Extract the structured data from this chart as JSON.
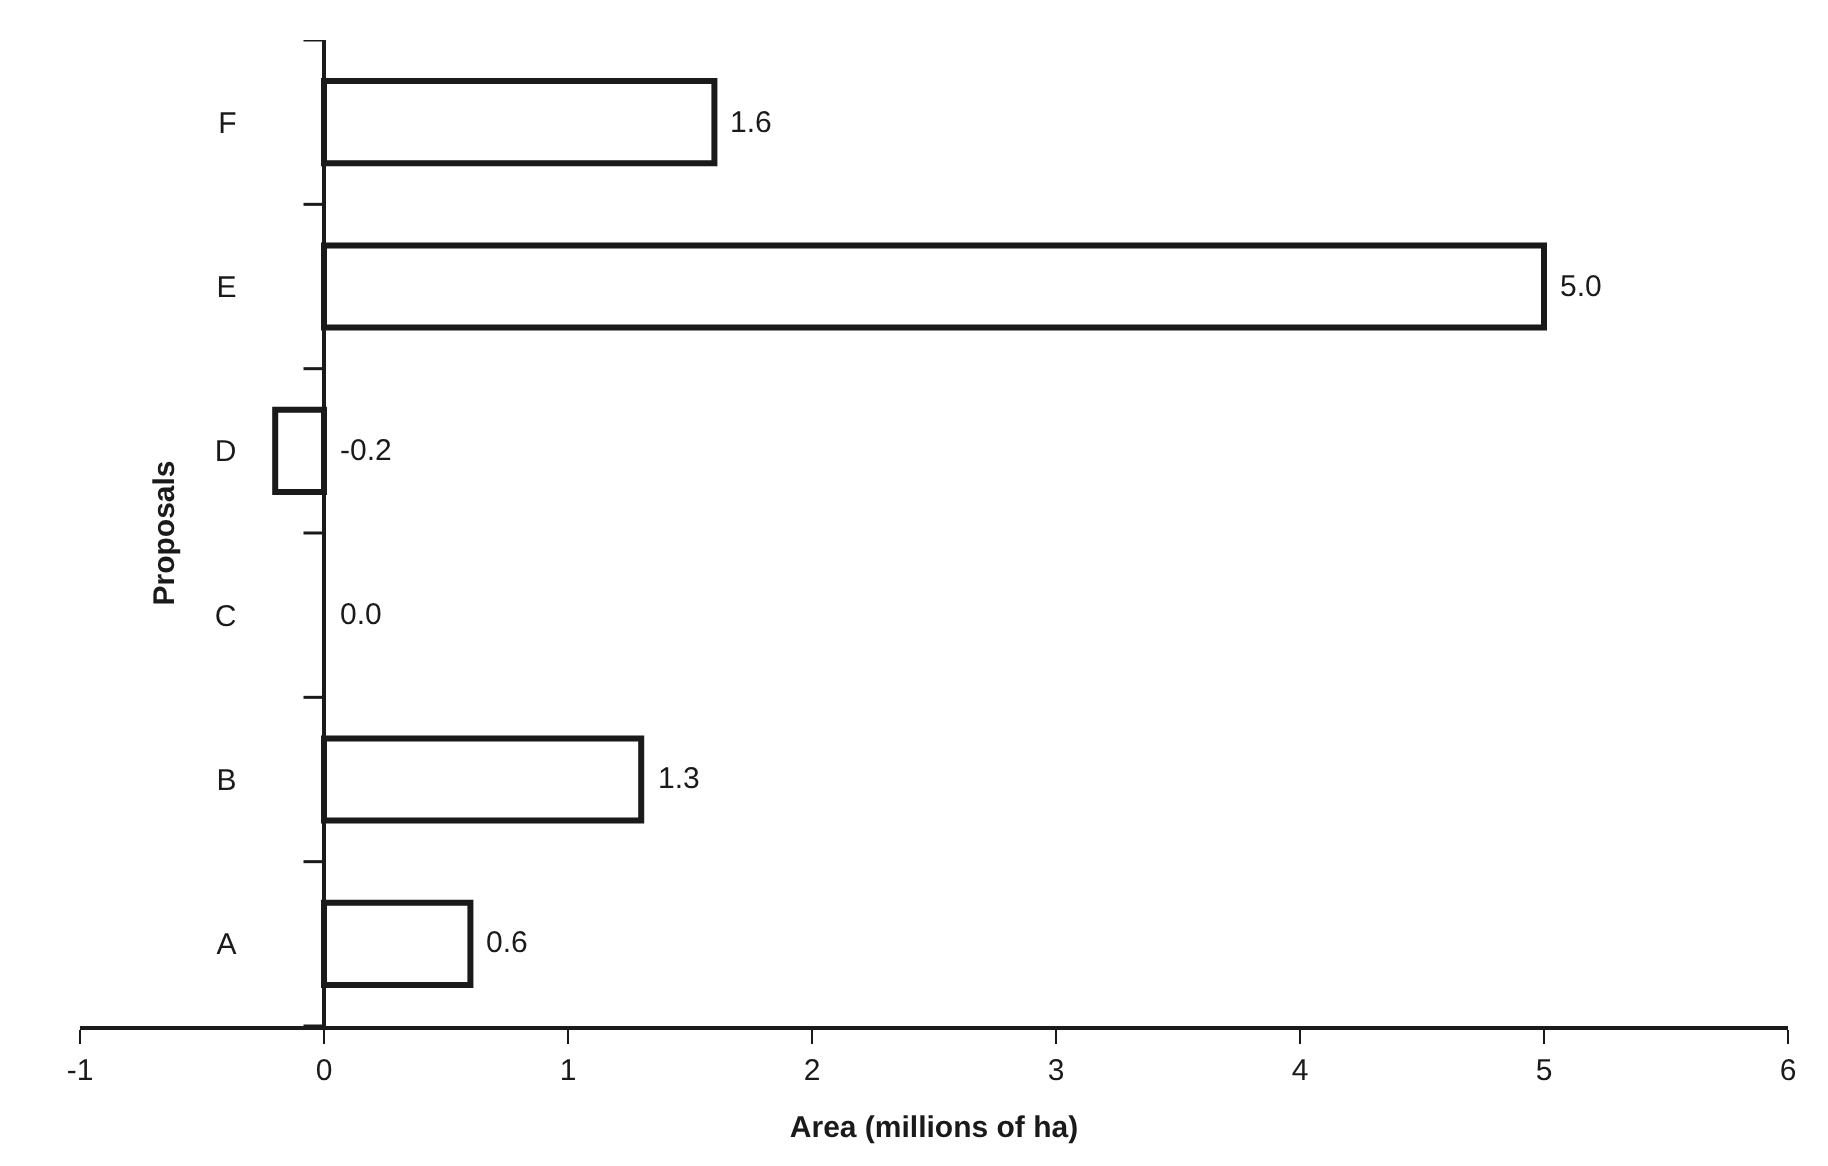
{
  "chart_data": {
    "type": "bar",
    "orientation": "horizontal",
    "xlabel": "Area (millions of ha)",
    "ylabel": "Proposals",
    "categories": [
      "F",
      "E",
      "D",
      "C",
      "B",
      "A"
    ],
    "values": [
      1.6,
      5.0,
      -0.2,
      0.0,
      1.3,
      0.6
    ],
    "value_labels": [
      "1.6",
      "5.0",
      "-0.2",
      "0.0",
      "1.3",
      "0.6"
    ],
    "color": "#ffffff",
    "xlim": [
      -1,
      6
    ],
    "xticks": [
      -1,
      0,
      1,
      2,
      3,
      4,
      5,
      6
    ],
    "legend": false
  }
}
